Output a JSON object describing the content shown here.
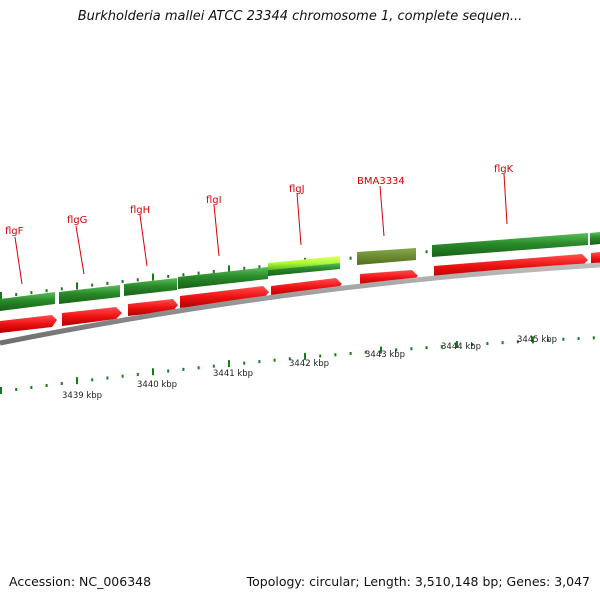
{
  "title": "Burkholderia mallei ATCC 23344 chromosome 1, complete sequen...",
  "footer": {
    "accession": "Accession: NC_006348",
    "summary": "Topology: circular; Length: 3,510,148 bp; Genes: 3,047"
  },
  "colors": {
    "gene_forward": "#2a8a2a",
    "gene_highlight": "#aaff33",
    "gene_other": "#6b8e23",
    "cds": "#ee1111",
    "backbone": "#8c8c8c",
    "label": "#d40000",
    "tick": "#1a7a1a"
  },
  "genes": [
    {
      "name": "flgF"
    },
    {
      "name": "flgG"
    },
    {
      "name": "flgH"
    },
    {
      "name": "flgI"
    },
    {
      "name": "flgJ"
    },
    {
      "name": "BMA3334"
    },
    {
      "name": "flgK"
    }
  ],
  "kbp_labels": [
    "3439 kbp",
    "3440 kbp",
    "3441 kbp",
    "3442 kbp",
    "3443 kbp",
    "3444 kbp",
    "3445 kbp"
  ]
}
